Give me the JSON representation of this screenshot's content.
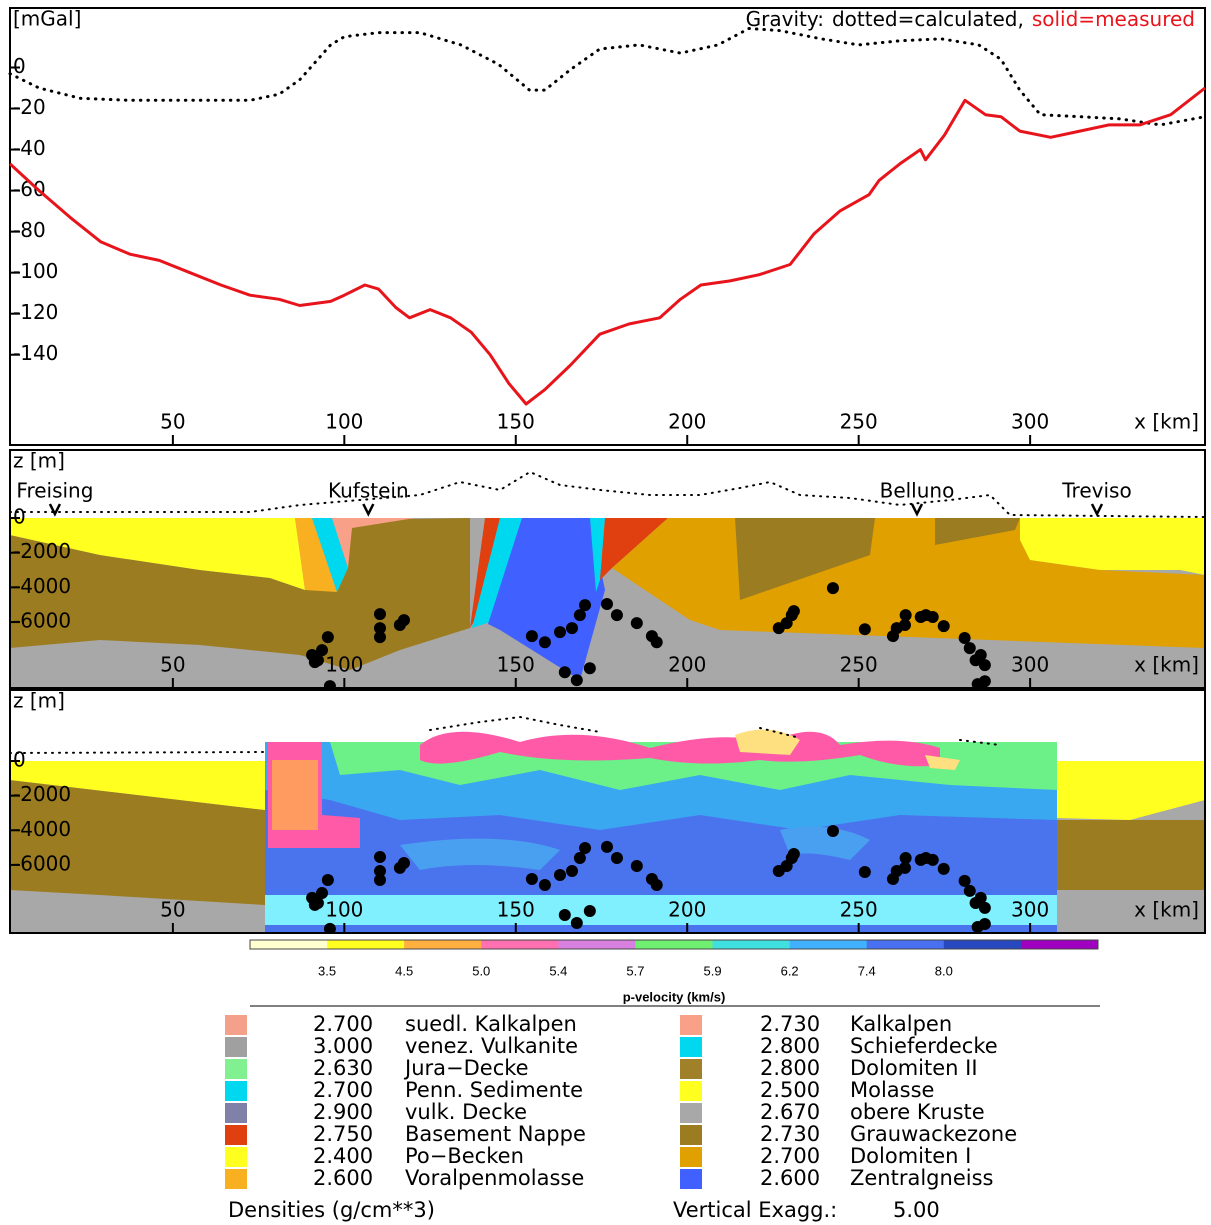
{
  "chart_data": [
    {
      "type": "line",
      "legend_title": "Gravity:",
      "ylabel": "[mGal]",
      "xlabel": "x [km]",
      "xlim": [
        2.5,
        351
      ],
      "ylim": [
        -184,
        29
      ],
      "xticks": [
        50,
        100,
        150,
        200,
        250,
        300
      ],
      "yticks": [
        0,
        -20,
        -40,
        -60,
        -80,
        -100,
        -120,
        -140
      ],
      "series": [
        {
          "name": "dotted=calculated,",
          "color": "#000000",
          "style": "dotted",
          "x": [
            2.5,
            11,
            23,
            37.5,
            58,
            72.5,
            81,
            87,
            96,
            100,
            110,
            122,
            134,
            145,
            154,
            158.5,
            166,
            174.5,
            186,
            198,
            209,
            218,
            227,
            239,
            250,
            262,
            274,
            285,
            291.5,
            297,
            303,
            314.5,
            326,
            338,
            351
          ],
          "values": [
            -3,
            -10,
            -15,
            -16,
            -16,
            -16,
            -13,
            -6,
            11,
            15,
            17,
            17,
            11,
            1.5,
            -11,
            -11,
            -1,
            9,
            11,
            7,
            11,
            19,
            18,
            14,
            11,
            13,
            14,
            11,
            4,
            -11,
            -23,
            -24,
            -25,
            -28,
            -24
          ]
        },
        {
          "name": "solid=measured",
          "color": "#e8141c",
          "style": "solid",
          "x": [
            2.5,
            11,
            20,
            29,
            37.5,
            46,
            55,
            64,
            72.5,
            81,
            87,
            96,
            100,
            106,
            110,
            115,
            119,
            125,
            131,
            137,
            142.5,
            148,
            153,
            158.5,
            166,
            174.5,
            183,
            192,
            198,
            204,
            212.5,
            221,
            230,
            237,
            244.5,
            253,
            256,
            262,
            268,
            269.5,
            275,
            281,
            287,
            291.5,
            297,
            306,
            314.5,
            323,
            332,
            341,
            351
          ],
          "values": [
            -47,
            -60,
            -73,
            -85,
            -91,
            -94,
            -100,
            -106,
            -111,
            -113,
            -116,
            -114,
            -111,
            -106,
            -108,
            -117,
            -122,
            -118,
            -122,
            -129,
            -140,
            -154,
            -164,
            -157,
            -145,
            -130,
            -125,
            -122,
            -113,
            -106,
            -104,
            -101,
            -96,
            -81,
            -70,
            -62,
            -55,
            -47,
            -40,
            -45,
            -33,
            -16,
            -23,
            -24,
            -31,
            -34,
            -31,
            -28,
            -28,
            -23,
            -10
          ]
        }
      ]
    },
    {
      "type": "scatter",
      "ylabel": "z [m]",
      "xlabel": "x [km]",
      "color": "#000000",
      "xlim": [
        2.5,
        351
      ],
      "ylim": [
        -9800,
        3920
      ],
      "xticks": [
        50,
        100,
        150,
        200,
        250,
        300
      ],
      "yticks": [
        0,
        -2000,
        -4000,
        -6000
      ],
      "annotations": [
        {
          "text": "Freising",
          "x": 15.6
        },
        {
          "text": "Kufstein",
          "x": 107
        },
        {
          "text": "Belluno",
          "x": 267
        },
        {
          "text": "Treviso",
          "x": 319.5
        }
      ],
      "x": [
        90.6,
        92.3,
        93.5,
        95.2,
        91.4,
        95.8,
        110.4,
        110.4,
        110.4,
        116.2,
        117.4,
        154.7,
        158.5,
        162.9,
        166.4,
        168.7,
        170.2,
        164.3,
        167.8,
        171.6,
        176.6,
        179.5,
        185.3,
        189.7,
        191.1,
        226.7,
        229.0,
        230.5,
        231.1,
        242.5,
        251.8,
        260.0,
        261.1,
        263.5,
        263.7,
        268.1,
        269.6,
        271.6,
        274.8,
        280.9,
        282.4,
        284.1,
        285.6,
        286.8,
        284.7,
        286.8
      ],
      "values": [
        -7900,
        -8200,
        -7620,
        -6870,
        -8310,
        -9690,
        -5540,
        -6350,
        -6870,
        -6170,
        -5890,
        -6810,
        -7160,
        -6580,
        -6350,
        -5600,
        -5020,
        -8890,
        -9350,
        -8660,
        -4960,
        -5600,
        -6060,
        -6810,
        -7160,
        -6350,
        -6060,
        -5600,
        -5370,
        -4040,
        -6410,
        -6810,
        -6350,
        -6170,
        -5600,
        -5710,
        -5600,
        -5710,
        -6230,
        -6920,
        -7500,
        -8200,
        -7900,
        -8480,
        -9580,
        -9410
      ]
    },
    {
      "type": "tomogram",
      "ylabel": "z [m]",
      "xlabel": "x [km]",
      "xlim": [
        2.5,
        351
      ],
      "ylim": [
        -9930,
        4100
      ],
      "xticks": [
        50,
        100,
        150,
        200,
        250,
        300
      ],
      "yticks": [
        0,
        -2000,
        -4000,
        -6000
      ]
    }
  ],
  "colorbar": {
    "title": "p-velocity (km/s)",
    "colors": [
      "#ffffd0",
      "#ffff20",
      "#ffb040",
      "#ff70b0",
      "#d880e0",
      "#70f070",
      "#40e0e0",
      "#40b0ff",
      "#4870f0",
      "#2848c0",
      "#a000c0"
    ],
    "ticks": [
      3.5,
      4.5,
      {
        "value": 5,
        "label": "5.0"
      },
      5.4,
      5.7,
      5.9,
      6.2,
      7.4,
      {
        "value": 8,
        "label": "8.0"
      }
    ]
  },
  "legend": {
    "left": [
      {
        "density": "2.700",
        "name": "suedl. Kalkalpen",
        "color": "#f4a08a"
      },
      {
        "density": "3.000",
        "name": "venez. Vulkanite",
        "color": "#a0a0a0"
      },
      {
        "density": "2.630",
        "name": "Jura−Decke",
        "color": "#80f090"
      },
      {
        "density": "2.700",
        "name": "Penn. Sedimente",
        "color": "#00d8f0"
      },
      {
        "density": "2.900",
        "name": "vulk. Decke",
        "color": "#8080a8"
      },
      {
        "density": "2.750",
        "name": "Basement Nappe",
        "color": "#e04010"
      },
      {
        "density": "2.400",
        "name": "Po−Becken",
        "color": "#ffff20"
      },
      {
        "density": "2.600",
        "name": "Voralpenmolasse",
        "color": "#f8b020"
      }
    ],
    "right": [
      {
        "density": "2.730",
        "name": "Kalkalpen",
        "color": "#f8a088"
      },
      {
        "density": "2.800",
        "name": "Schieferdecke",
        "color": "#00d8f0"
      },
      {
        "density": "2.800",
        "name": "Dolomiten II",
        "color": "#a08028"
      },
      {
        "density": "2.500",
        "name": "Molasse",
        "color": "#ffff20"
      },
      {
        "density": "2.670",
        "name": "obere Kruste",
        "color": "#a8a8a8"
      },
      {
        "density": "2.730",
        "name": "Grauwackezone",
        "color": "#9c7c20"
      },
      {
        "density": "2.700",
        "name": "Dolomiten I",
        "color": "#e0a000"
      },
      {
        "density": "2.600",
        "name": "Zentralgneiss",
        "color": "#4060ff"
      }
    ],
    "caption": "Densities (g/cm**3)",
    "exaggeration_label": "Vertical Exagg.:",
    "exaggeration": "5.00"
  }
}
